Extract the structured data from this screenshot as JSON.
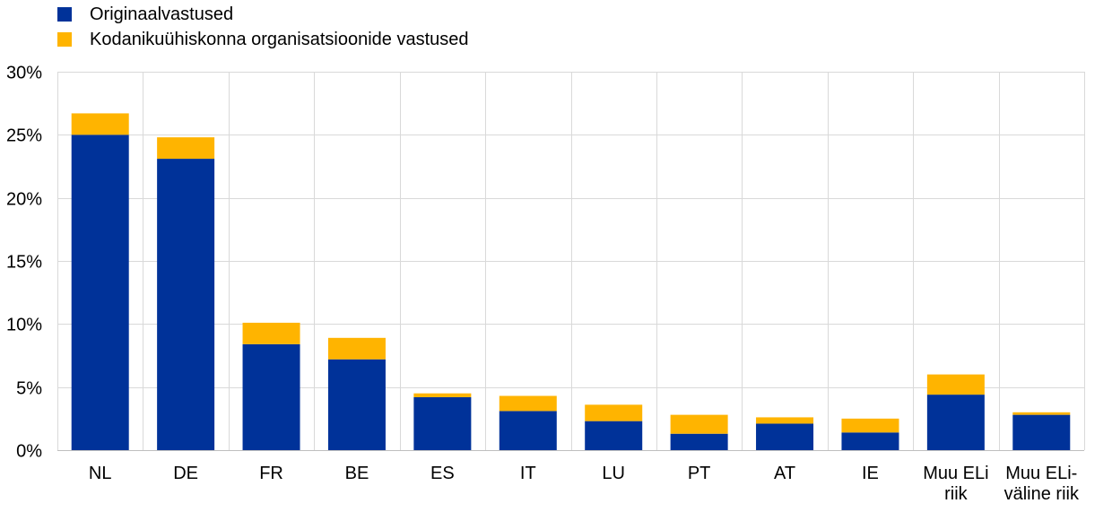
{
  "legend": {
    "items": [
      {
        "label": "Originaalvastused",
        "color": "#003299"
      },
      {
        "label": "Kodanikuühiskonna organisatsioonide vastused",
        "color": "#FFB400"
      }
    ]
  },
  "chart_data": {
    "type": "bar",
    "stacked": true,
    "categories": [
      "NL",
      "DE",
      "FR",
      "BE",
      "ES",
      "IT",
      "LU",
      "PT",
      "AT",
      "IE",
      "Muu ELi riik",
      "Muu ELi-väline riik"
    ],
    "category_label_lines": [
      [
        "NL"
      ],
      [
        "DE"
      ],
      [
        "FR"
      ],
      [
        "BE"
      ],
      [
        "ES"
      ],
      [
        "IT"
      ],
      [
        "LU"
      ],
      [
        "PT"
      ],
      [
        "AT"
      ],
      [
        "IE"
      ],
      [
        "Muu ELi",
        "riik"
      ],
      [
        "Muu ELi-",
        "väline riik"
      ]
    ],
    "series": [
      {
        "name": "Originaalvastused",
        "color": "#003299",
        "values": [
          25.0,
          23.1,
          8.4,
          7.2,
          4.2,
          3.1,
          2.3,
          1.3,
          2.1,
          1.4,
          4.4,
          2.8
        ]
      },
      {
        "name": "Kodanikuühiskonna organisatsioonide vastused",
        "color": "#FFB400",
        "values": [
          1.7,
          1.7,
          1.7,
          1.7,
          0.3,
          1.2,
          1.3,
          1.5,
          0.5,
          1.1,
          1.6,
          0.2
        ]
      }
    ],
    "ylim": [
      0,
      30
    ],
    "yticks": [
      0,
      5,
      10,
      15,
      20,
      25,
      30
    ],
    "ytick_labels": [
      "0%",
      "5%",
      "10%",
      "15%",
      "20%",
      "25%",
      "30%"
    ],
    "grid": true,
    "legend_position": "top-left",
    "xlabel": "",
    "ylabel": ""
  }
}
